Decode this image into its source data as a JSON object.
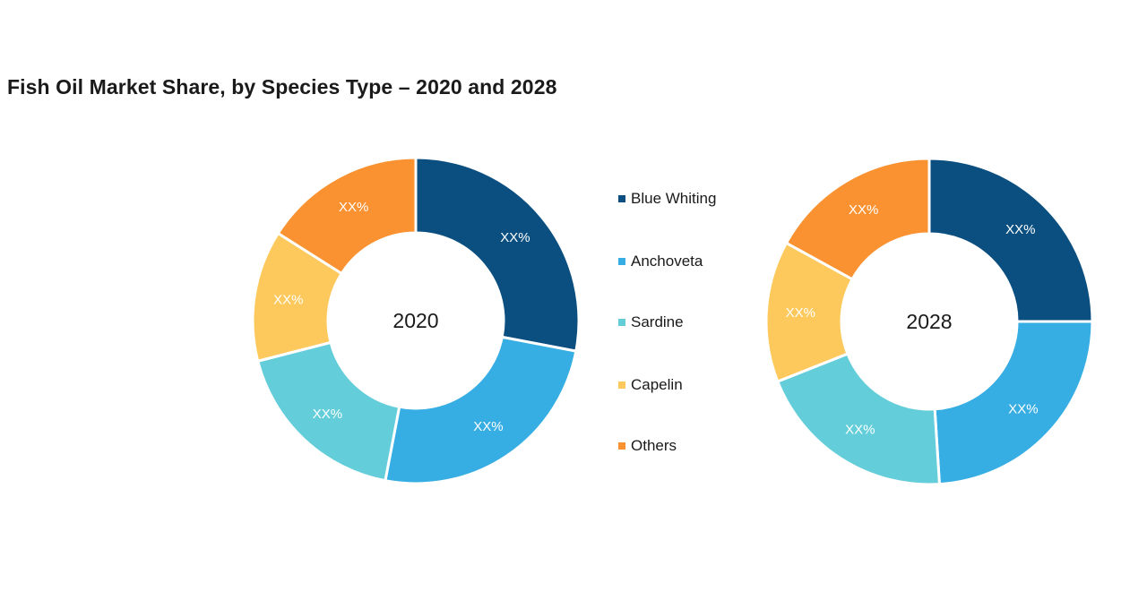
{
  "chart_data": {
    "type": "pie",
    "variant": "donut",
    "title": "Fish Oil Market Share, by Species Type – 2020 and 2028",
    "legend": {
      "placement": "center",
      "items": [
        {
          "label": "Blue Whiting",
          "color": "#0b4f80"
        },
        {
          "label": "Anchoveta",
          "color": "#36ade3"
        },
        {
          "label": "Sardine",
          "color": "#63cdd9"
        },
        {
          "label": "Capelin",
          "color": "#fec95c"
        },
        {
          "label": "Others",
          "color": "#fa9231"
        }
      ]
    },
    "charts": [
      {
        "center_label": "2020",
        "slices": [
          {
            "name": "Blue Whiting",
            "value": 28,
            "label": "XX%"
          },
          {
            "name": "Anchoveta",
            "value": 25,
            "label": "XX%"
          },
          {
            "name": "Sardine",
            "value": 18,
            "label": "XX%"
          },
          {
            "name": "Capelin",
            "value": 13,
            "label": "XX%"
          },
          {
            "name": "Others",
            "value": 16,
            "label": "XX%"
          }
        ]
      },
      {
        "center_label": "2028",
        "slices": [
          {
            "name": "Blue Whiting",
            "value": 25,
            "label": "XX%"
          },
          {
            "name": "Anchoveta",
            "value": 24,
            "label": "XX%"
          },
          {
            "name": "Sardine",
            "value": 20,
            "label": "XX%"
          },
          {
            "name": "Capelin",
            "value": 14,
            "label": "XX%"
          },
          {
            "name": "Others",
            "value": 17,
            "label": "XX%"
          }
        ]
      }
    ]
  }
}
